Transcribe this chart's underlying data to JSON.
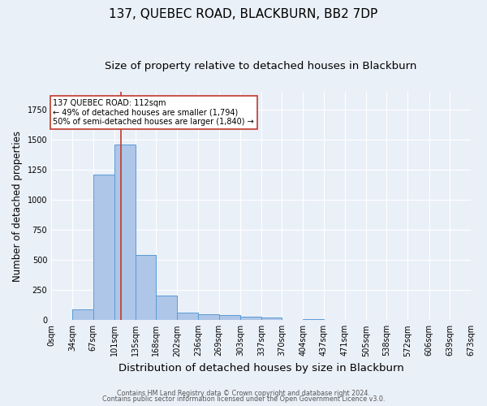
{
  "title": "137, QUEBEC ROAD, BLACKBURN, BB2 7DP",
  "subtitle": "Size of property relative to detached houses in Blackburn",
  "xlabel": "Distribution of detached houses by size in Blackburn",
  "ylabel": "Number of detached properties",
  "footer_line1": "Contains HM Land Registry data © Crown copyright and database right 2024.",
  "footer_line2": "Contains public sector information licensed under the Open Government Licence v3.0.",
  "bin_labels": [
    "0sqm",
    "34sqm",
    "67sqm",
    "101sqm",
    "135sqm",
    "168sqm",
    "202sqm",
    "236sqm",
    "269sqm",
    "303sqm",
    "337sqm",
    "370sqm",
    "404sqm",
    "437sqm",
    "471sqm",
    "505sqm",
    "538sqm",
    "572sqm",
    "606sqm",
    "639sqm",
    "673sqm"
  ],
  "bar_values": [
    0,
    90,
    1210,
    1460,
    540,
    205,
    65,
    50,
    42,
    28,
    20,
    5,
    12,
    0,
    0,
    0,
    0,
    0,
    0,
    0
  ],
  "bin_edges": [
    0,
    34,
    67,
    101,
    135,
    168,
    202,
    236,
    269,
    303,
    337,
    370,
    404,
    437,
    471,
    505,
    538,
    572,
    606,
    639,
    673
  ],
  "bar_color": "#aec6e8",
  "bar_edge_color": "#5b9bd5",
  "background_color": "#eaf0f8",
  "grid_color": "#ffffff",
  "property_size": 112,
  "vline_color": "#c0392b",
  "annotation_text": "137 QUEBEC ROAD: 112sqm\n← 49% of detached houses are smaller (1,794)\n50% of semi-detached houses are larger (1,840) →",
  "annotation_box_color": "#ffffff",
  "annotation_box_edge": "#c0392b",
  "ylim": [
    0,
    1900
  ],
  "title_fontsize": 11,
  "subtitle_fontsize": 9.5,
  "xlabel_fontsize": 9.5,
  "ylabel_fontsize": 8.5,
  "tick_fontsize": 7,
  "footer_fontsize": 5.8
}
